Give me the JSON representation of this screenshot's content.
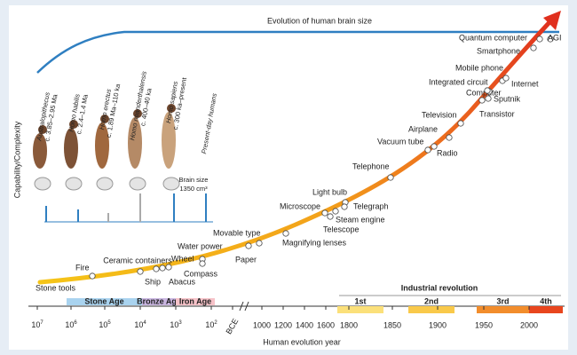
{
  "brain_title": "Evolution of human brain size",
  "y_axis_label": "Capability/Complexity",
  "x_axis_label": "Human evolution year",
  "x_ticks": [
    {
      "base": "10",
      "exp": "7"
    },
    {
      "base": "10",
      "exp": "6"
    },
    {
      "base": "10",
      "exp": "5"
    },
    {
      "base": "10",
      "exp": "4"
    },
    {
      "base": "10",
      "exp": "3"
    },
    {
      "base": "10",
      "exp": "2"
    },
    "BCE",
    "1000",
    "1200",
    "1400",
    "1600",
    "1800",
    "1850",
    "1900",
    "1950",
    "2000"
  ],
  "ages": [
    "Stone Age",
    "Bronze Age",
    "Iron Age"
  ],
  "revolution": {
    "title": "Industrial revolution",
    "phases": [
      "1st",
      "2nd",
      "3rd",
      "4th"
    ]
  },
  "hominins": [
    {
      "name": "Australopithecus",
      "date": "c. 3.85–2.95 Ma"
    },
    {
      "name": "Homo habilis",
      "date": "c. 2.4–1.4 Ma"
    },
    {
      "name": "Homo erectus",
      "date": "c. 1.89 Ma–110 ka"
    },
    {
      "name": "Homo neanderthalensis",
      "date": "c. 400–40 ka"
    },
    {
      "name": "Homo sapiens",
      "date": "c. 300 ka–present"
    },
    {
      "name": "Present-day humans"
    }
  ],
  "brain_size": {
    "label": "Brain size",
    "value": "1350 cm³"
  },
  "milestones": [
    "Stone tools",
    "Fire",
    "Ceramic containers",
    "Wheel",
    "Ship",
    "Abacus",
    "Water power",
    "Compass",
    "Movable type",
    "Paper",
    "Magnifying lenses",
    "Microscope",
    "Light bulb",
    "Telescope",
    "Steam engine",
    "Telegraph",
    "Telephone",
    "Vacuum tube",
    "Radio",
    "Airplane",
    "Television",
    "Transistor",
    "Computer",
    "Sputnik",
    "Integrated circuit",
    "Mobile phone",
    "Internet",
    "Smartphone",
    "Quantum computer",
    "AGI"
  ]
}
